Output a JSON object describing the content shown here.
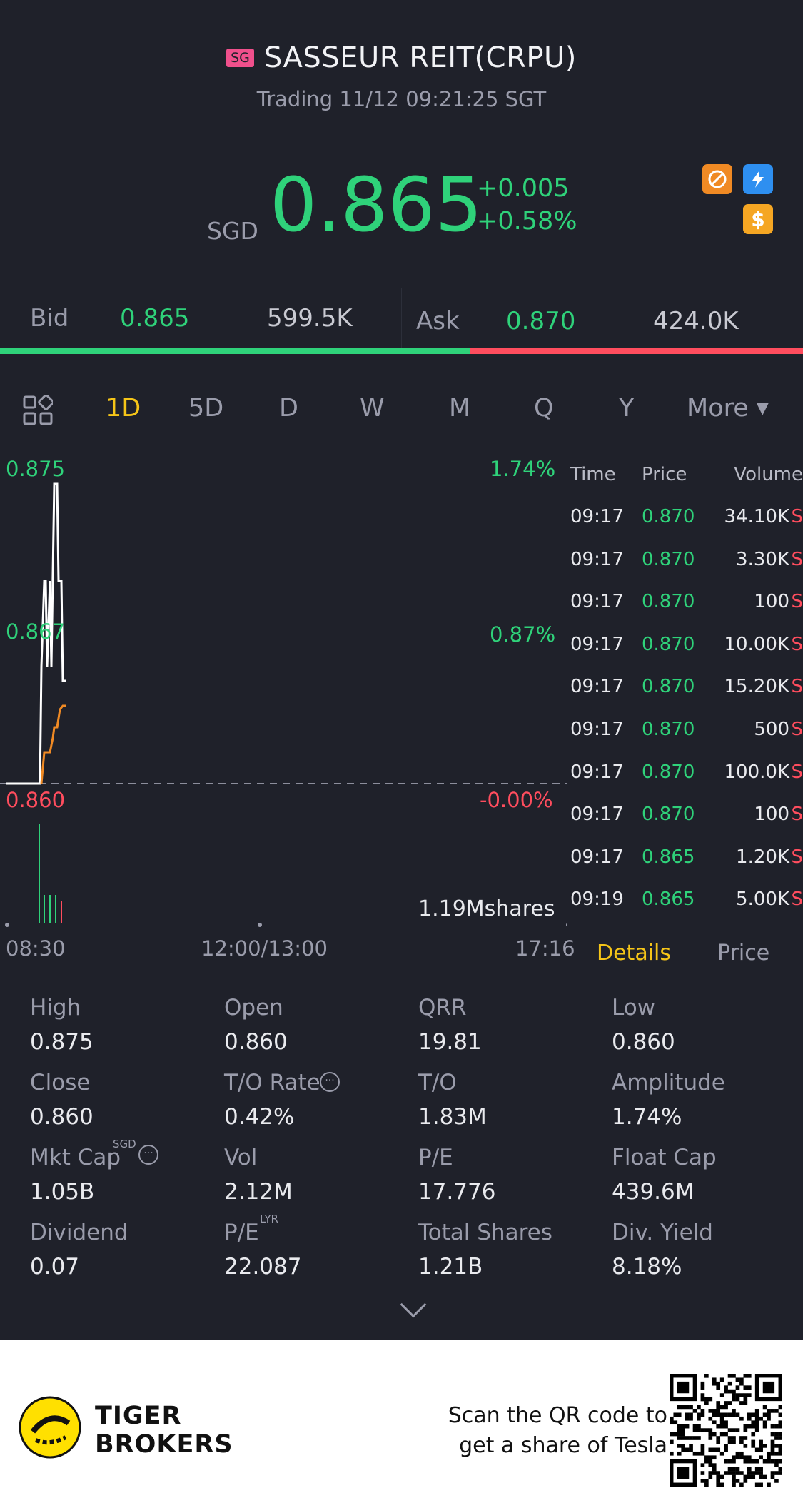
{
  "header": {
    "market_badge": "SG",
    "title": "SASSEUR REIT(CRPU)",
    "status_line": "Trading 11/12 09:21:25 SGT",
    "currency": "SGD",
    "price": "0.865",
    "change": "+0.005",
    "change_pct": "+0.58%",
    "icons": [
      "no-short-icon",
      "lightning-icon",
      "dollar-icon"
    ]
  },
  "quote": {
    "bid_label": "Bid",
    "bid_price": "0.865",
    "bid_size": "599.5K",
    "ask_label": "Ask",
    "ask_price": "0.870",
    "ask_size": "424.0K",
    "bid_share": 0.585
  },
  "tabs": {
    "items": [
      "1D",
      "5D",
      "D",
      "W",
      "M",
      "Q",
      "Y"
    ],
    "active": "1D",
    "more": "More"
  },
  "chart": {
    "price_high": "0.875",
    "price_mid": "0.867",
    "price_low": "0.860",
    "pct_high": "1.74%",
    "pct_mid": "0.87%",
    "pct_low": "-0.00%",
    "volume_label": "1.19Mshares",
    "time_start": "08:30",
    "time_mid": "12:00/13:00",
    "time_end": "17:16"
  },
  "trades": {
    "headers": [
      "Time",
      "Price",
      "Volume"
    ],
    "rows": [
      {
        "time": "09:17",
        "price": "0.870",
        "volume": "34.10K",
        "side": "S"
      },
      {
        "time": "09:17",
        "price": "0.870",
        "volume": "3.30K",
        "side": "S"
      },
      {
        "time": "09:17",
        "price": "0.870",
        "volume": "100",
        "side": "S"
      },
      {
        "time": "09:17",
        "price": "0.870",
        "volume": "10.00K",
        "side": "S"
      },
      {
        "time": "09:17",
        "price": "0.870",
        "volume": "15.20K",
        "side": "S"
      },
      {
        "time": "09:17",
        "price": "0.870",
        "volume": "500",
        "side": "S"
      },
      {
        "time": "09:17",
        "price": "0.870",
        "volume": "100.0K",
        "side": "S"
      },
      {
        "time": "09:17",
        "price": "0.870",
        "volume": "100",
        "side": "S"
      },
      {
        "time": "09:17",
        "price": "0.865",
        "volume": "1.20K",
        "side": "S"
      },
      {
        "time": "09:19",
        "price": "0.865",
        "volume": "5.00K",
        "side": "S"
      }
    ],
    "tab_details": "Details",
    "tab_price": "Price"
  },
  "stats": [
    {
      "label": "High",
      "value": "0.875"
    },
    {
      "label": "Open",
      "value": "0.860"
    },
    {
      "label": "QRR",
      "value": "19.81"
    },
    {
      "label": "Low",
      "value": "0.860"
    },
    {
      "label": "Close",
      "value": "0.860"
    },
    {
      "label": "T/O Rate",
      "value": "0.42%"
    },
    {
      "label": "T/O",
      "value": "1.83M"
    },
    {
      "label": "Amplitude",
      "value": "1.74%"
    },
    {
      "label": "Mkt Cap",
      "value": "1.05B",
      "sup": "SGD"
    },
    {
      "label": "Vol",
      "value": "2.12M"
    },
    {
      "label": "P/E",
      "value": "17.776"
    },
    {
      "label": "Float Cap",
      "value": "439.6M"
    },
    {
      "label": "Dividend",
      "value": "0.07"
    },
    {
      "label": "P/E",
      "value": "22.087",
      "sup": "LYR"
    },
    {
      "label": "Total Shares",
      "value": "1.21B"
    },
    {
      "label": "Div. Yield",
      "value": "8.18%"
    }
  ],
  "footer": {
    "brand_line1": "TIGER",
    "brand_line2": "BROKERS",
    "scan_line1": "Scan the QR code to",
    "scan_line2": "get a share of Tesla"
  },
  "colors": {
    "background": "#1f212a",
    "up": "#2fd27a",
    "down": "#ff4d5e",
    "active_tab": "#f5c518"
  }
}
